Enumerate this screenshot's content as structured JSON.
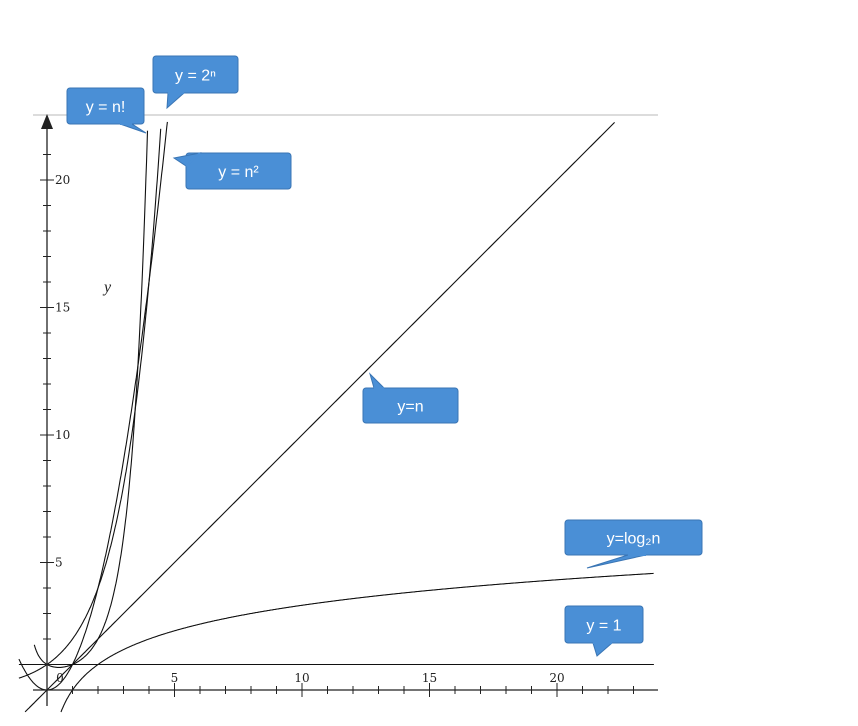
{
  "chart_data": {
    "type": "line",
    "title": "",
    "xlabel": "",
    "ylabel": "y",
    "xlim": [
      -0.5,
      23.8
    ],
    "ylim": [
      -0.5,
      22.2
    ],
    "x_ticks": [
      "0",
      "5",
      "10",
      "15",
      "20"
    ],
    "y_ticks": [
      "5",
      "10",
      "15",
      "20"
    ],
    "grid": false,
    "series": [
      {
        "name": "y = n!",
        "function": "gamma(n+1)"
      },
      {
        "name": "y = 2ⁿ",
        "function": "2^n"
      },
      {
        "name": "y = n²",
        "function": "n^2"
      },
      {
        "name": "y=n",
        "function": "n"
      },
      {
        "name": "y=log₂n",
        "function": "log2(n)"
      },
      {
        "name": "y = 1",
        "function": "1"
      }
    ]
  },
  "callouts": [
    {
      "id": "factorial",
      "text": "y = n!"
    },
    {
      "id": "exponential",
      "text": "y = 2ⁿ"
    },
    {
      "id": "quadratic",
      "text": "y = n²"
    },
    {
      "id": "linear",
      "text": "y=n"
    },
    {
      "id": "logarithmic",
      "text": "y=log₂n"
    },
    {
      "id": "constant",
      "text": "y = 1"
    }
  ],
  "colors": {
    "callout_fill": "#4a8fd6",
    "callout_text": "#ffffff",
    "curve": "#111111",
    "axis": "#222222"
  }
}
